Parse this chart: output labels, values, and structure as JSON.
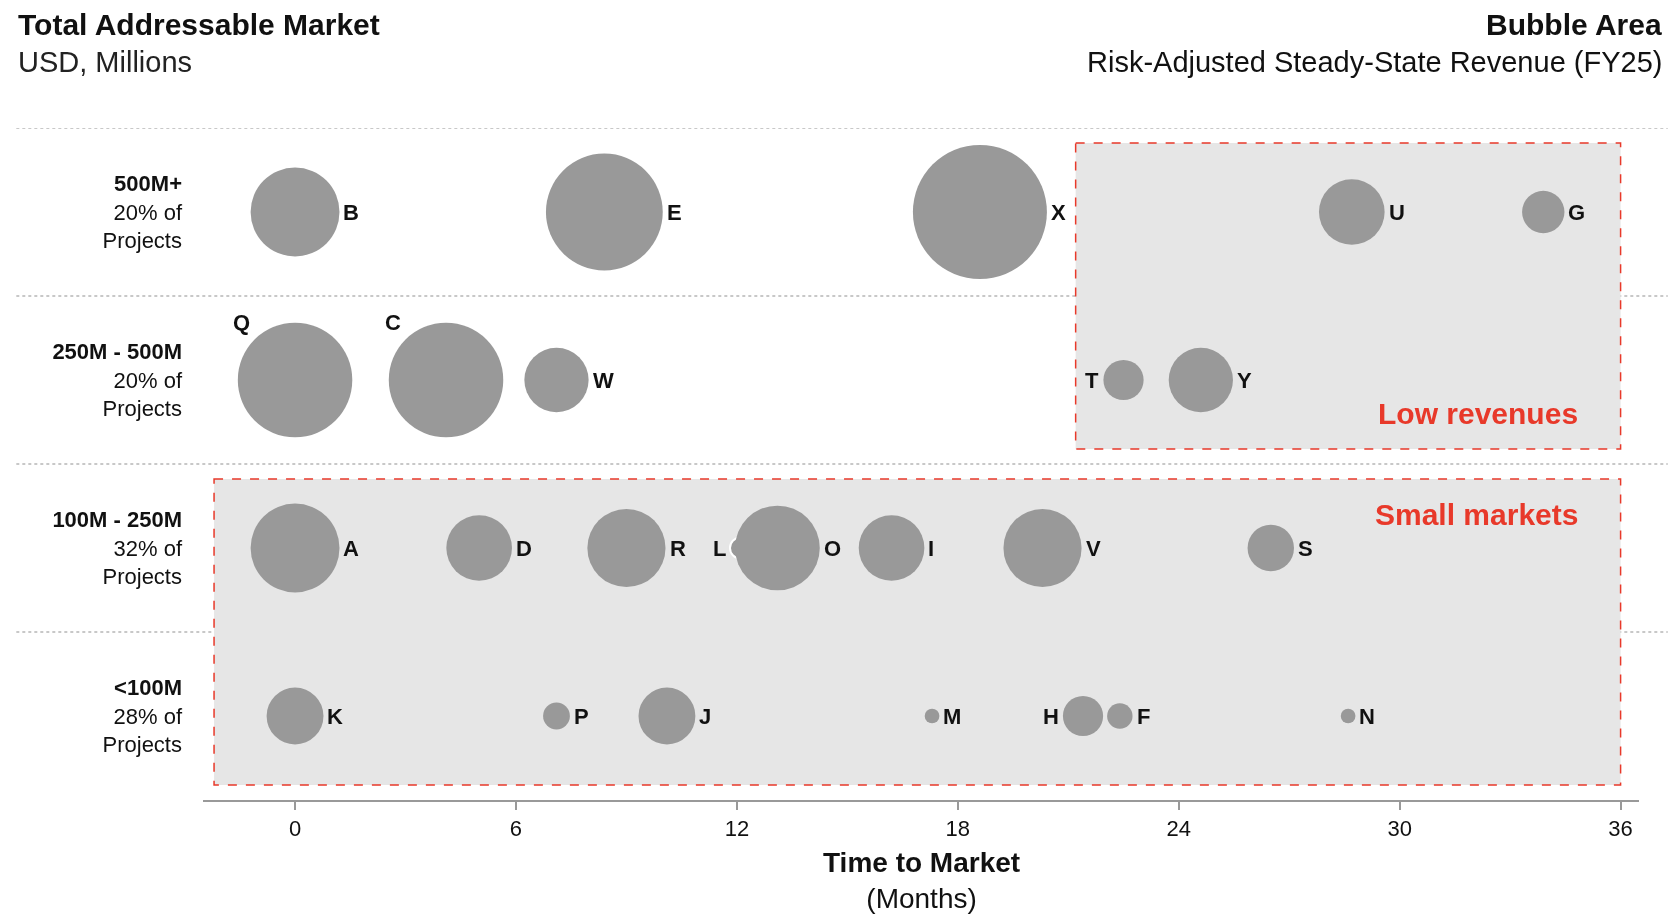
{
  "chart_data": {
    "type": "bubble",
    "title": "Total Addressable Market",
    "subtitle": "USD, Millions",
    "xlabel": "Time to Market\n(Months)",
    "annotations": [
      "Bubble Area",
      "Risk-Adjusted Steady-State Revenue (FY25)"
    ],
    "orientation": "horizontal",
    "categories": [
      "500M+\n20% of\nProjects",
      "250M - 500M\n20% of\nProjects",
      "100M - 250M\n32% of\nProjects",
      "<100M\n28% of\nProjects"
    ],
    "series": [
      {
        "color": "#999999",
        "values": [
          0,
          0,
          0,
          0
        ],
        "sizes": [
          0.44,
          0.73,
          0.44,
          0.18
        ],
        "value_labels": [
          "B",
          "Q",
          "A",
          "K"
        ]
      },
      {
        "color": "#999999",
        "values": [
          8.4,
          4.1,
          5,
          7.1
        ],
        "sizes": [
          0.76,
          0.73,
          0.24,
          0.04
        ],
        "value_labels": [
          "E",
          "C",
          "D",
          "P"
        ]
      },
      {
        "color": "#999999",
        "values": [
          18.6,
          7.1,
          9,
          10.1
        ],
        "sizes": [
          1,
          0.23,
          0.34,
          0.18
        ],
        "value_labels": [
          "X",
          "W",
          "R",
          "J"
        ]
      },
      {
        "color": "#999999",
        "values": [
          28.7,
          22.5,
          12.1,
          17.3
        ],
        "sizes": [
          0.24,
          0.09,
          0.025,
          0.012
        ],
        "value_labels": [
          "U",
          "T",
          "L",
          "M"
        ]
      },
      {
        "color": "#999999",
        "values": [
          33.9,
          24.6,
          13.1,
          21.4
        ],
        "sizes": [
          0.1,
          0.23,
          0.4,
          0.09
        ],
        "value_labels": [
          "G",
          "Y",
          "O",
          "H"
        ]
      },
      {
        "color": "#999999",
        "values": [
          null,
          null,
          16.2,
          22.4
        ],
        "sizes": [
          null,
          null,
          0.24,
          0.036
        ],
        "value_labels": [
          null,
          null,
          "I",
          "F"
        ]
      },
      {
        "color": "#999999",
        "values": [
          null,
          null,
          20.3,
          28.6
        ],
        "sizes": [
          null,
          null,
          0.34,
          0.012
        ],
        "value_labels": [
          null,
          null,
          "V",
          "N"
        ]
      },
      {
        "color": "#999999",
        "values": [
          null,
          null,
          26.5,
          null
        ],
        "sizes": [
          null,
          null,
          0.12,
          null
        ],
        "value_labels": [
          null,
          null,
          "S",
          null
        ]
      }
    ],
    "bands": [
      {
        "axis": "x",
        "from": 21.2,
        "to": 36,
        "label": "Low revenues",
        "color": "#e8392a"
      },
      {
        "axis": "x",
        "from": -2.2,
        "to": 36,
        "label": "Small markets",
        "color": "#e8392a"
      }
    ],
    "xlim": [
      -2.5,
      36.5
    ],
    "xticks": [
      0,
      6,
      12,
      18,
      24,
      30,
      36
    ],
    "grid": "y",
    "legend": false,
    "marker": "circle"
  }
}
